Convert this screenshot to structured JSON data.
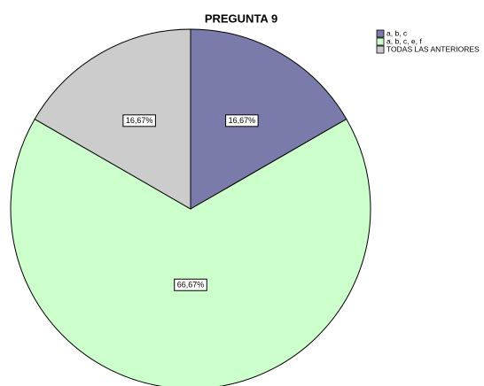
{
  "chart_data": {
    "type": "pie",
    "title": "PREGUNTA 9",
    "categories": [
      "a, b, c",
      "a, b, c, e, f",
      "TODAS LAS ANTERIORES"
    ],
    "values": [
      16.67,
      66.67,
      16.67
    ],
    "value_labels": [
      "16,67%",
      "66,67%",
      "16,67%"
    ],
    "colors": [
      "#7b7bab",
      "#ccffcc",
      "#cccccc"
    ],
    "legend": "top-right"
  }
}
